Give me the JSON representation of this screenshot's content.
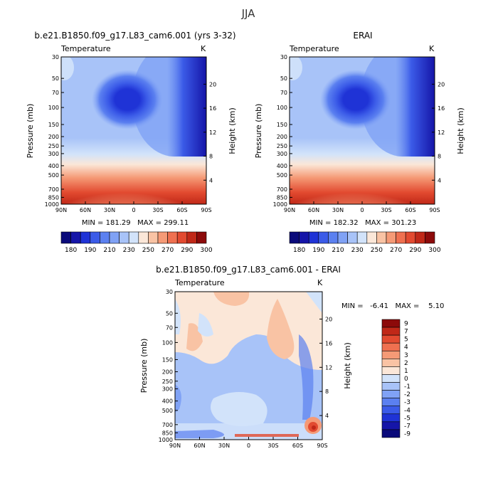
{
  "figure": {
    "title": "JJA"
  },
  "chart_data": [
    {
      "type": "heatmap",
      "title": "b.e21.B1850.f09_g17.L83_cam6.001 (yrs 3-32)",
      "variable": "Temperature",
      "units": "K",
      "xlabel": "",
      "ylabel": "Pressure (mb)",
      "y2label": "Height (km)",
      "x_ticks": [
        "90N",
        "60N",
        "30N",
        "0",
        "30S",
        "60S",
        "90S"
      ],
      "x_range": [
        90,
        -90
      ],
      "y_ticks": [
        "30",
        "50",
        "70",
        "100",
        "150",
        "200",
        "250",
        "300",
        "400",
        "500",
        "700",
        "850",
        "1000"
      ],
      "y_range_mb": [
        30,
        1000
      ],
      "y_scale": "log",
      "y2_ticks": [
        "20",
        "16",
        "12",
        "8",
        "4"
      ],
      "stats": "MIN = 181.29   MAX = 299.11",
      "colorbar_labels": [
        "180",
        "190",
        "210",
        "230",
        "250",
        "270",
        "290",
        "300"
      ],
      "colorbar_colors": [
        "#0a0a7a",
        "#1515a8",
        "#1f33d6",
        "#3b5be8",
        "#5b80f0",
        "#80a2f5",
        "#a8c3f8",
        "#d2e3fa",
        "#fbe7d8",
        "#f9c3a4",
        "#f59a76",
        "#ef7050",
        "#e24a30",
        "#c02818",
        "#8c0a0a"
      ]
    },
    {
      "type": "heatmap",
      "title": "ERAI",
      "variable": "Temperature",
      "units": "K",
      "xlabel": "",
      "ylabel": "Pressure (mb)",
      "y2label": "Height (km)",
      "x_ticks": [
        "90N",
        "60N",
        "30N",
        "0",
        "30S",
        "60S",
        "90S"
      ],
      "x_range": [
        90,
        -90
      ],
      "y_ticks": [
        "30",
        "50",
        "70",
        "100",
        "150",
        "200",
        "250",
        "300",
        "400",
        "500",
        "700",
        "850",
        "1000"
      ],
      "y_range_mb": [
        30,
        1000
      ],
      "y_scale": "log",
      "y2_ticks": [
        "20",
        "16",
        "12",
        "8",
        "4"
      ],
      "stats": "MIN = 182.32   MAX = 301.23",
      "colorbar_labels": [
        "180",
        "190",
        "210",
        "230",
        "250",
        "270",
        "290",
        "300"
      ],
      "colorbar_colors": [
        "#0a0a7a",
        "#1515a8",
        "#1f33d6",
        "#3b5be8",
        "#5b80f0",
        "#80a2f5",
        "#a8c3f8",
        "#d2e3fa",
        "#fbe7d8",
        "#f9c3a4",
        "#f59a76",
        "#ef7050",
        "#e24a30",
        "#c02818",
        "#8c0a0a"
      ]
    },
    {
      "type": "heatmap",
      "title": "b.e21.B1850.f09_g17.L83_cam6.001 - ERAI",
      "variable": "Temperature",
      "units": "K",
      "xlabel": "",
      "ylabel": "Pressure (mb)",
      "y2label": "Height (km)",
      "x_ticks": [
        "90N",
        "60N",
        "30N",
        "0",
        "30S",
        "60S",
        "90S"
      ],
      "x_range": [
        90,
        -90
      ],
      "y_ticks": [
        "30",
        "50",
        "70",
        "100",
        "150",
        "200",
        "250",
        "300",
        "400",
        "500",
        "700",
        "850",
        "1000"
      ],
      "y_range_mb": [
        30,
        1000
      ],
      "y_scale": "log",
      "y2_ticks": [
        "20",
        "16",
        "12",
        "8",
        "4"
      ],
      "stats": "MIN =   -6.41   MAX =    5.10",
      "colorbar_labels": [
        "9",
        "7",
        "5",
        "4",
        "3",
        "2",
        "1",
        "0",
        "-1",
        "-2",
        "-3",
        "-4",
        "-5",
        "-7",
        "-9"
      ],
      "colorbar_colors": [
        "#8c0a0a",
        "#c02818",
        "#e24a30",
        "#ef7050",
        "#f59a76",
        "#f9c3a4",
        "#fbe7d8",
        "#d2e3fa",
        "#a8c3f8",
        "#80a2f5",
        "#5b80f0",
        "#3b5be8",
        "#1f33d6",
        "#1515a8",
        "#0a0a7a"
      ]
    }
  ]
}
